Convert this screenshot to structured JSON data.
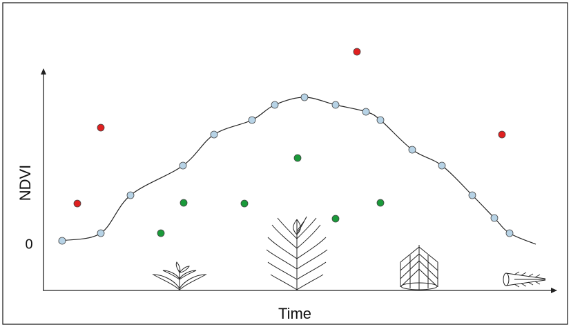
{
  "axes": {
    "y_label": "NDVI",
    "x_label": "Time",
    "y_zero_label": "0"
  }
}
